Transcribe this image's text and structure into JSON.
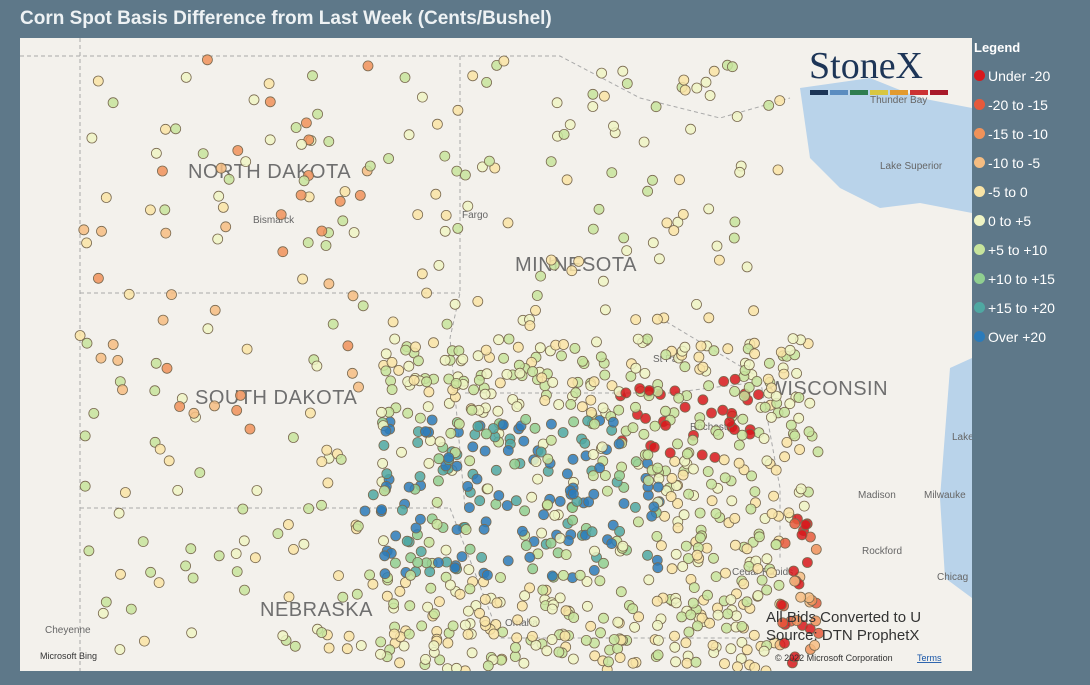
{
  "header": {
    "title": "Corn Spot Basis Difference from Last Week (Cents/Bushel)"
  },
  "legend": {
    "title": "Legend",
    "items": [
      {
        "label": "Under -20",
        "color": "#d7191c"
      },
      {
        "label": "-20 to -15",
        "color": "#e65a3c"
      },
      {
        "label": "-15 to -10",
        "color": "#f0925a"
      },
      {
        "label": "-10 to -5",
        "color": "#f6bd82"
      },
      {
        "label": "-5 to 0",
        "color": "#f9e4a6"
      },
      {
        "label": "0 to +5",
        "color": "#eff4c4"
      },
      {
        "label": "+5 to +10",
        "color": "#c7e49c"
      },
      {
        "label": "+10 to +15",
        "color": "#90cf90"
      },
      {
        "label": "+15 to +20",
        "color": "#4fa8a2"
      },
      {
        "label": "Over +20",
        "color": "#2b7bba"
      }
    ]
  },
  "map": {
    "states": [
      "NORTH DAKOTA",
      "MINNESOTA",
      "SOUTH DAKOTA",
      "WISCONSIN",
      "NEBRASKA"
    ],
    "cities": [
      "Bismarck",
      "Fargo",
      "Thunder Bay",
      "Lake Superior",
      "Cheyenne",
      "St Pa",
      "Rochester",
      "Madison",
      "Milwauke",
      "Rockford",
      "Cedar Rapids",
      "Omaha",
      "Chicag",
      "Lake Michi"
    ],
    "logo": "StoneX",
    "notes": [
      "All Bids Converted to U",
      "Source: DTN ProphetX"
    ],
    "credits": {
      "provider": "Microsoft Bing",
      "copyright": "© 2022 Microsoft Corporation",
      "terms": "Terms"
    }
  }
}
